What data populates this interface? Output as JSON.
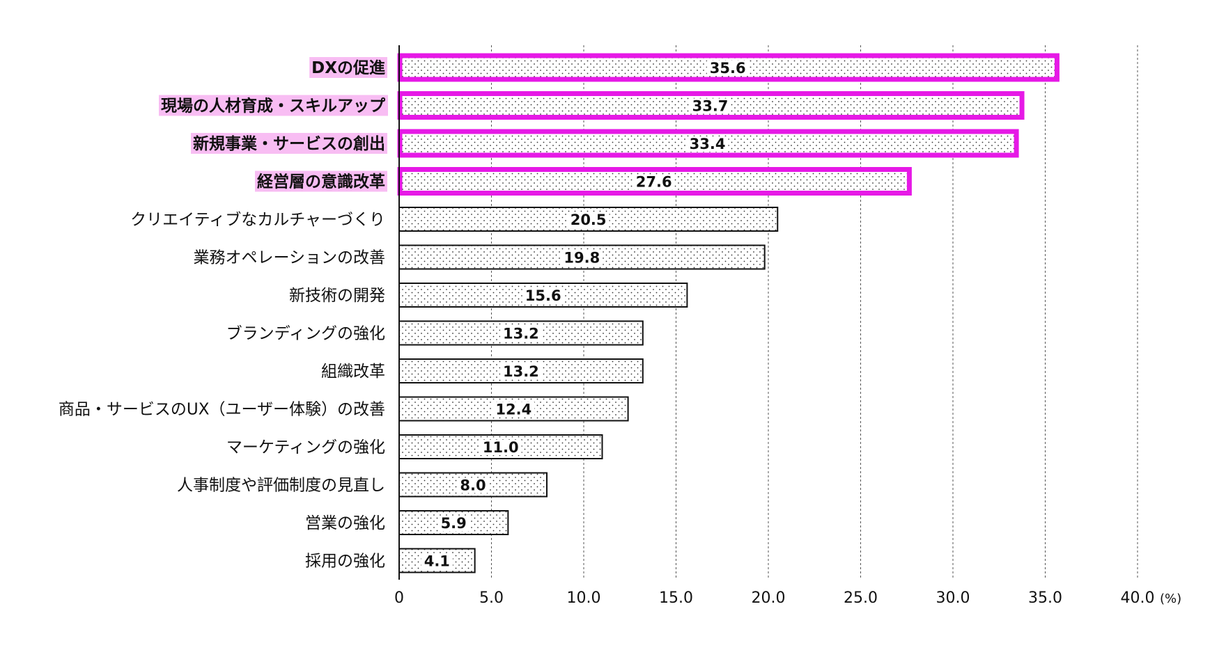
{
  "chart_data": {
    "type": "bar",
    "orientation": "horizontal",
    "unit": "(%)",
    "xlim": [
      0,
      40
    ],
    "ticks": [
      "0",
      "5.0",
      "10.0",
      "15.0",
      "20.0",
      "25.0",
      "30.0",
      "35.0",
      "40.0"
    ],
    "grid": "vertical dashed",
    "bar_fill": "dotted pattern",
    "highlight_color": "#e619e6",
    "highlight_label_bg": "#f8bdf3",
    "categories": [
      "DXの促進",
      "現場の人材育成・スキルアップ",
      "新規事業・サービスの創出",
      "経営層の意識改革",
      "クリエイティブなカルチャーづくり",
      "業務オペレーションの改善",
      "新技術の開発",
      "ブランディングの強化",
      "組織改革",
      "商品・サービスのUX（ユーザー体験）の改善",
      "マーケティングの強化",
      "人事制度や評価制度の見直し",
      "営業の強化",
      "採用の強化"
    ],
    "values": [
      35.6,
      33.7,
      33.4,
      27.6,
      20.5,
      19.8,
      15.6,
      13.2,
      13.2,
      12.4,
      11.0,
      8.0,
      5.9,
      4.1
    ],
    "value_labels": [
      "35.6",
      "33.7",
      "33.4",
      "27.6",
      "20.5",
      "19.8",
      "15.6",
      "13.2",
      "13.2",
      "12.4",
      "11.0",
      "8.0",
      "5.9",
      "4.1"
    ],
    "highlighted": [
      true,
      true,
      true,
      true,
      false,
      false,
      false,
      false,
      false,
      false,
      false,
      false,
      false,
      false
    ]
  }
}
